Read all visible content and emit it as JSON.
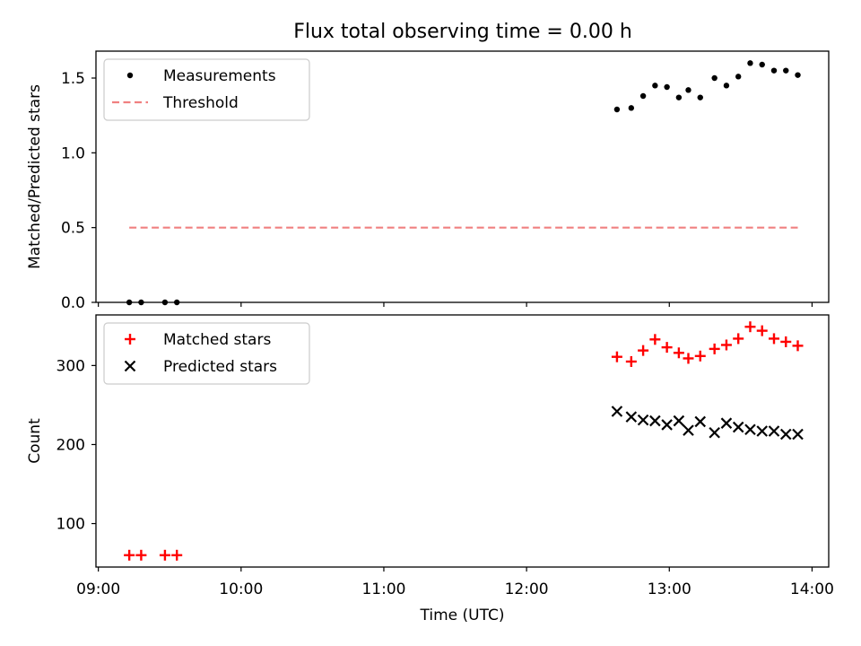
{
  "figure": {
    "title": "Flux total observing time = 0.00 h"
  },
  "chart_data": [
    {
      "type": "scatter",
      "panel": "top",
      "title": "Flux total observing time = 0.00 h",
      "xlabel": "",
      "ylabel": "Matched/Predicted stars",
      "x_ticks": [
        "09:00",
        "10:00",
        "11:00",
        "12:00",
        "13:00",
        "14:00"
      ],
      "x_tick_labels_shown": false,
      "xlim": [
        "08:59",
        "14:07"
      ],
      "ylim": [
        0.0,
        1.68
      ],
      "y_ticks": [
        0.0,
        0.5,
        1.0,
        1.5
      ],
      "y_tick_labels": [
        "0.0",
        "0.5",
        "1.0",
        "1.5"
      ],
      "grid": false,
      "legend_position": "upper left",
      "series": [
        {
          "name": "Measurements",
          "marker": "dot",
          "color": "#000000",
          "x": [
            "09:13",
            "09:18",
            "09:28",
            "09:33",
            "12:38",
            "12:44",
            "12:49",
            "12:54",
            "12:59",
            "13:04",
            "13:08",
            "13:13",
            "13:19",
            "13:24",
            "13:29",
            "13:34",
            "13:39",
            "13:44",
            "13:49",
            "13:54"
          ],
          "y": [
            0.0,
            0.0,
            0.0,
            0.0,
            1.29,
            1.3,
            1.38,
            1.45,
            1.44,
            1.37,
            1.42,
            1.37,
            1.5,
            1.45,
            1.51,
            1.6,
            1.59,
            1.55,
            1.55,
            1.52
          ]
        },
        {
          "name": "Threshold",
          "style": "dashed",
          "color": "#f08080",
          "x": [
            "09:13",
            "13:54"
          ],
          "y": [
            0.5,
            0.5
          ]
        }
      ]
    },
    {
      "type": "scatter",
      "panel": "bottom",
      "xlabel": "Time (UTC)",
      "ylabel": "Count",
      "x_ticks": [
        "09:00",
        "10:00",
        "11:00",
        "12:00",
        "13:00",
        "14:00"
      ],
      "x_tick_labels": [
        "09:00",
        "10:00",
        "11:00",
        "12:00",
        "13:00",
        "14:00"
      ],
      "xlim": [
        "08:59",
        "14:07"
      ],
      "ylim": [
        45,
        364
      ],
      "y_ticks": [
        100,
        200,
        300
      ],
      "y_tick_labels": [
        "100",
        "200",
        "300"
      ],
      "grid": false,
      "legend_position": "upper left",
      "series": [
        {
          "name": "Matched stars",
          "marker": "plus",
          "color": "#ff0000",
          "x": [
            "09:13",
            "09:18",
            "09:28",
            "09:33",
            "12:38",
            "12:44",
            "12:49",
            "12:54",
            "12:59",
            "13:04",
            "13:08",
            "13:13",
            "13:19",
            "13:24",
            "13:29",
            "13:34",
            "13:39",
            "13:44",
            "13:49",
            "13:54"
          ],
          "y": [
            60,
            60,
            60,
            60,
            311,
            305,
            319,
            333,
            323,
            316,
            309,
            312,
            321,
            326,
            334,
            349,
            344,
            334,
            330,
            325
          ]
        },
        {
          "name": "Predicted stars",
          "marker": "x",
          "color": "#000000",
          "x": [
            "12:38",
            "12:44",
            "12:49",
            "12:54",
            "12:59",
            "13:04",
            "13:08",
            "13:13",
            "13:19",
            "13:24",
            "13:29",
            "13:34",
            "13:39",
            "13:44",
            "13:49",
            "13:54"
          ],
          "y": [
            242,
            235,
            231,
            230,
            225,
            230,
            218,
            229,
            215,
            227,
            222,
            219,
            217,
            217,
            213,
            213
          ]
        }
      ]
    }
  ]
}
